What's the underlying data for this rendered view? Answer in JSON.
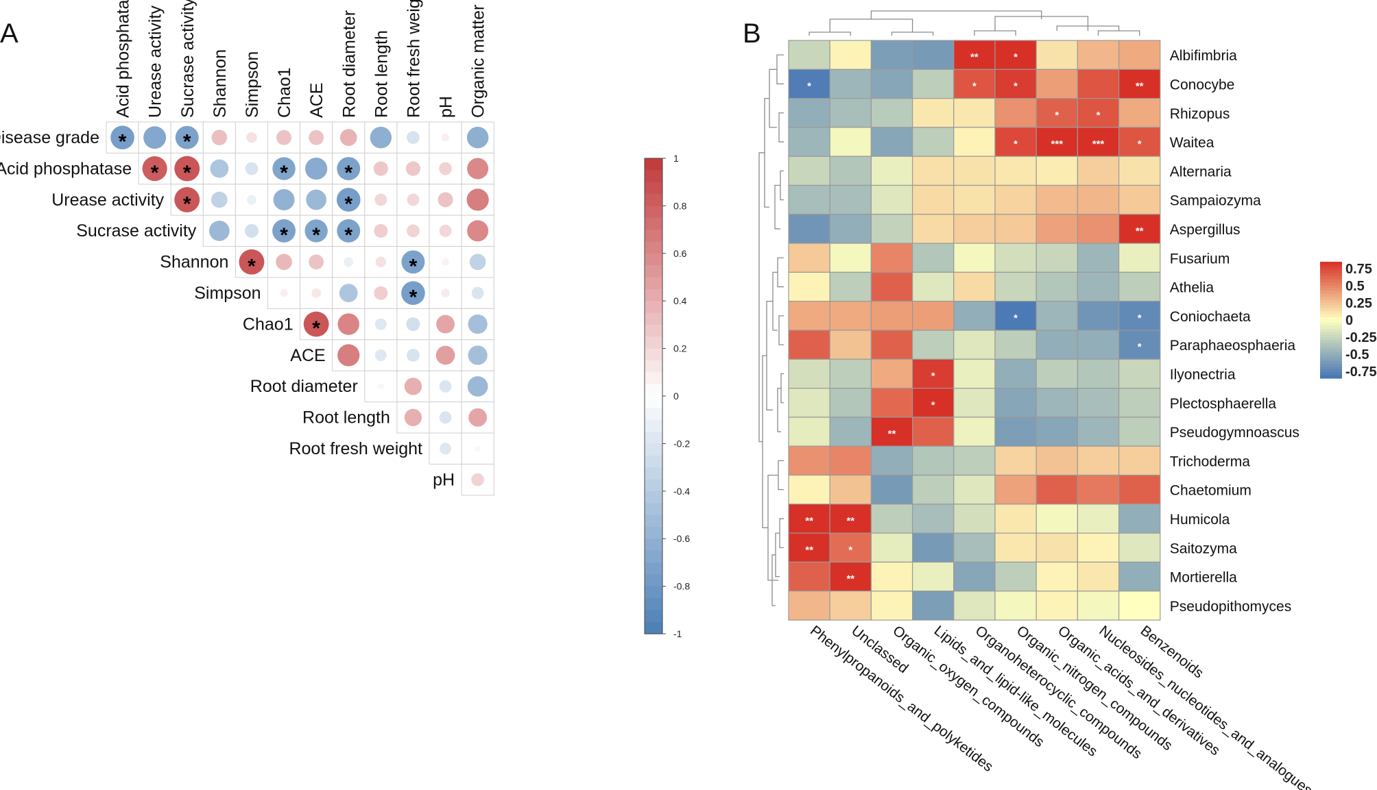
{
  "panels": {
    "a_label": "A",
    "b_label": "B"
  },
  "chart_data": [
    {
      "type": "heatmap",
      "subtype": "correlation-circle-upper-triangle",
      "title": "",
      "row_labels": [
        "Disease grade",
        "Acid phosphatase",
        "Urease activity",
        "Sucrase activity",
        "Shannon",
        "Simpson",
        "Chao1",
        "ACE",
        "Root diameter",
        "Root length",
        "Root fresh weight",
        "pH"
      ],
      "col_labels": [
        "Acid phosphatase",
        "Urease activity",
        "Sucrase activity",
        "Shannon",
        "Simpson",
        "Chao1",
        "ACE",
        "Root diameter",
        "Root length",
        "Root fresh weight",
        "pH",
        "Organic matter"
      ],
      "values": [
        [
          -0.75,
          -0.68,
          -0.72,
          0.32,
          0.15,
          0.3,
          0.3,
          0.38,
          -0.62,
          -0.22,
          0.08,
          -0.62
        ],
        [
          null,
          0.82,
          0.85,
          -0.45,
          -0.22,
          -0.7,
          -0.65,
          -0.72,
          0.28,
          0.28,
          0.22,
          0.6
        ],
        [
          null,
          null,
          0.85,
          -0.35,
          -0.12,
          -0.6,
          -0.55,
          -0.75,
          0.2,
          0.2,
          0.3,
          0.65
        ],
        [
          null,
          null,
          null,
          -0.55,
          -0.25,
          -0.72,
          -0.7,
          -0.72,
          0.25,
          0.22,
          0.2,
          0.6
        ],
        [
          null,
          null,
          null,
          null,
          0.85,
          0.35,
          0.3,
          -0.12,
          0.15,
          -0.72,
          0.07,
          -0.35
        ],
        [
          null,
          null,
          null,
          null,
          null,
          0.08,
          0.12,
          -0.45,
          0.25,
          -0.75,
          0.1,
          -0.2
        ],
        [
          null,
          null,
          null,
          null,
          null,
          null,
          0.85,
          0.62,
          -0.18,
          -0.25,
          0.45,
          -0.5
        ],
        [
          null,
          null,
          null,
          null,
          null,
          null,
          null,
          0.65,
          -0.18,
          -0.22,
          0.48,
          -0.5
        ],
        [
          null,
          null,
          null,
          null,
          null,
          null,
          null,
          null,
          0.05,
          0.4,
          -0.2,
          -0.55
        ],
        [
          null,
          null,
          null,
          null,
          null,
          null,
          null,
          null,
          null,
          0.4,
          -0.2,
          0.45
        ],
        [
          null,
          null,
          null,
          null,
          null,
          null,
          null,
          null,
          null,
          null,
          -0.18,
          0.05
        ],
        [
          null,
          null,
          null,
          null,
          null,
          null,
          null,
          null,
          null,
          null,
          null,
          0.22
        ]
      ],
      "significance": [
        [
          1,
          0,
          1,
          0,
          0,
          0,
          0,
          0,
          0,
          0,
          0,
          0
        ],
        [
          0,
          1,
          1,
          0,
          0,
          1,
          0,
          1,
          0,
          0,
          0,
          0
        ],
        [
          0,
          0,
          1,
          0,
          0,
          0,
          0,
          1,
          0,
          0,
          0,
          0
        ],
        [
          0,
          0,
          0,
          0,
          0,
          1,
          1,
          1,
          0,
          0,
          0,
          0
        ],
        [
          0,
          0,
          0,
          0,
          1,
          0,
          0,
          0,
          0,
          1,
          0,
          0
        ],
        [
          0,
          0,
          0,
          0,
          0,
          0,
          0,
          0,
          0,
          1,
          0,
          0
        ],
        [
          0,
          0,
          0,
          0,
          0,
          0,
          1,
          0,
          0,
          0,
          0,
          0
        ],
        [
          0,
          0,
          0,
          0,
          0,
          0,
          0,
          0,
          0,
          0,
          0,
          0
        ],
        [
          0,
          0,
          0,
          0,
          0,
          0,
          0,
          0,
          0,
          0,
          0,
          0
        ],
        [
          0,
          0,
          0,
          0,
          0,
          0,
          0,
          0,
          0,
          0,
          0,
          0
        ],
        [
          0,
          0,
          0,
          0,
          0,
          0,
          0,
          0,
          0,
          0,
          0,
          0
        ],
        [
          0,
          0,
          0,
          0,
          0,
          0,
          0,
          0,
          0,
          0,
          0,
          0
        ]
      ],
      "sig_symbol": "*",
      "colorbar": {
        "range": [
          -1,
          1
        ],
        "ticks": [
          "1",
          "0.8",
          "0.6",
          "0.4",
          "0.2",
          "0",
          "-0.2",
          "-0.4",
          "-0.6",
          "-0.8",
          "-1"
        ]
      },
      "colors": {
        "neg": "#4a7eb5",
        "mid": "#ffffff",
        "pos": "#c1383a"
      }
    },
    {
      "type": "heatmap",
      "subtype": "clustered-heatmap",
      "title": "",
      "row_labels": [
        "Albifimbria",
        "Conocybe",
        "Rhizopus",
        "Waitea",
        "Alternaria",
        "Sampaiozyma",
        "Aspergillus",
        "Fusarium",
        "Athelia",
        "Coniochaeta",
        "Paraphaeosphaeria",
        "Ilyonectria",
        "Plectosphaerella",
        "Pseudogymnoascus",
        "Trichoderma",
        "Chaetomium",
        "Humicola",
        "Saitozyma",
        "Mortierella",
        "Pseudopithomyces"
      ],
      "col_labels": [
        "Phenylpropanoids_and_polyketides",
        "Unclassed",
        "Organic_oxygen_compounds",
        "Lipids_and_lipid-like_molecules",
        "Organoheterocyclic_compounds",
        "Organic_nitrogen_compounds",
        "Organic_acids_and_derivatives",
        "Nucleosides_nucleotides_and_analogues",
        "Benzenoids"
      ],
      "values": [
        [
          -0.25,
          0.05,
          -0.6,
          -0.62,
          0.95,
          0.9,
          0.12,
          0.3,
          0.35
        ],
        [
          -0.8,
          -0.45,
          -0.55,
          -0.3,
          0.7,
          0.8,
          0.4,
          0.7,
          0.85
        ],
        [
          -0.5,
          -0.4,
          -0.32,
          0.1,
          0.1,
          0.45,
          0.65,
          0.7,
          0.35
        ],
        [
          -0.45,
          -0.05,
          -0.55,
          -0.3,
          0.05,
          0.75,
          0.95,
          0.95,
          0.7
        ],
        [
          -0.25,
          -0.35,
          -0.1,
          0.13,
          0.12,
          0.1,
          0.08,
          0.2,
          0.12
        ],
        [
          -0.4,
          -0.4,
          -0.15,
          0.15,
          0.12,
          0.18,
          0.28,
          0.3,
          0.22
        ],
        [
          -0.65,
          -0.5,
          -0.28,
          0.15,
          0.2,
          0.22,
          0.38,
          0.45,
          0.9
        ],
        [
          0.22,
          -0.05,
          0.5,
          -0.35,
          -0.05,
          -0.2,
          -0.25,
          -0.45,
          -0.1
        ],
        [
          0.05,
          -0.3,
          0.65,
          -0.15,
          0.15,
          -0.25,
          -0.35,
          -0.45,
          -0.3
        ],
        [
          0.35,
          0.35,
          0.4,
          0.4,
          -0.5,
          -0.82,
          -0.45,
          -0.65,
          -0.72
        ],
        [
          0.65,
          0.25,
          0.65,
          -0.3,
          -0.15,
          -0.3,
          -0.5,
          -0.5,
          -0.7
        ],
        [
          -0.2,
          -0.3,
          0.35,
          0.8,
          -0.1,
          -0.5,
          -0.3,
          -0.35,
          -0.25
        ],
        [
          -0.15,
          -0.35,
          0.62,
          0.85,
          -0.15,
          -0.55,
          -0.45,
          -0.4,
          -0.3
        ],
        [
          -0.12,
          -0.45,
          0.88,
          0.65,
          -0.08,
          -0.6,
          -0.55,
          -0.45,
          -0.3
        ],
        [
          0.45,
          0.5,
          -0.5,
          -0.35,
          -0.3,
          0.18,
          0.25,
          0.2,
          0.2
        ],
        [
          0.05,
          0.25,
          -0.62,
          -0.3,
          -0.15,
          0.38,
          0.65,
          0.55,
          0.65
        ],
        [
          0.9,
          0.88,
          -0.3,
          -0.4,
          -0.2,
          0.1,
          -0.05,
          -0.1,
          -0.5
        ],
        [
          0.9,
          0.6,
          -0.12,
          -0.62,
          -0.4,
          0.1,
          0.12,
          0.05,
          -0.15
        ],
        [
          0.65,
          0.88,
          0.05,
          -0.1,
          -0.55,
          -0.3,
          0.05,
          0.1,
          -0.5
        ],
        [
          0.3,
          0.2,
          0.05,
          -0.6,
          -0.15,
          -0.05,
          0.05,
          -0.05,
          0.0
        ]
      ],
      "stars": [
        [
          "",
          "",
          "",
          "",
          "**",
          "*",
          "",
          "",
          ""
        ],
        [
          "*",
          "",
          "",
          "",
          "*",
          "*",
          "",
          "",
          "**"
        ],
        [
          "",
          "",
          "",
          "",
          "",
          "",
          "*",
          "*",
          ""
        ],
        [
          "",
          "",
          "",
          "",
          "",
          "*",
          "***",
          "***",
          "*"
        ],
        [
          "",
          "",
          "",
          "",
          "",
          "",
          "",
          "",
          ""
        ],
        [
          "",
          "",
          "",
          "",
          "",
          "",
          "",
          "",
          ""
        ],
        [
          "",
          "",
          "",
          "",
          "",
          "",
          "",
          "",
          "**"
        ],
        [
          "",
          "",
          "",
          "",
          "",
          "",
          "",
          "",
          ""
        ],
        [
          "",
          "",
          "",
          "",
          "",
          "",
          "",
          "",
          ""
        ],
        [
          "",
          "",
          "",
          "",
          "",
          "*",
          "",
          "",
          "*"
        ],
        [
          "",
          "",
          "",
          "",
          "",
          "",
          "",
          "",
          "*"
        ],
        [
          "",
          "",
          "",
          "*",
          "",
          "",
          "",
          "",
          ""
        ],
        [
          "",
          "",
          "",
          "*",
          "",
          "",
          "",
          "",
          ""
        ],
        [
          "",
          "",
          "**",
          "",
          "",
          "",
          "",
          "",
          ""
        ],
        [
          "",
          "",
          "",
          "",
          "",
          "",
          "",
          "",
          ""
        ],
        [
          "",
          "",
          "",
          "",
          "",
          "",
          "",
          "",
          ""
        ],
        [
          "**",
          "**",
          "",
          "",
          "",
          "",
          "",
          "",
          ""
        ],
        [
          "**",
          "*",
          "",
          "",
          "",
          "",
          "",
          "",
          ""
        ],
        [
          "",
          "**",
          "",
          "",
          "",
          "",
          "",
          "",
          ""
        ],
        [
          "",
          "",
          "",
          "",
          "",
          "",
          "",
          "",
          ""
        ]
      ],
      "colorbar": {
        "range": [
          -0.85,
          0.85
        ],
        "ticks": [
          "0.75",
          "0.5",
          "0.25",
          "0",
          "-0.25",
          "-0.5",
          "-0.75"
        ]
      },
      "colors": {
        "low": "#4575b4",
        "mid": "#ffffbf",
        "high": "#d73027"
      }
    }
  ]
}
